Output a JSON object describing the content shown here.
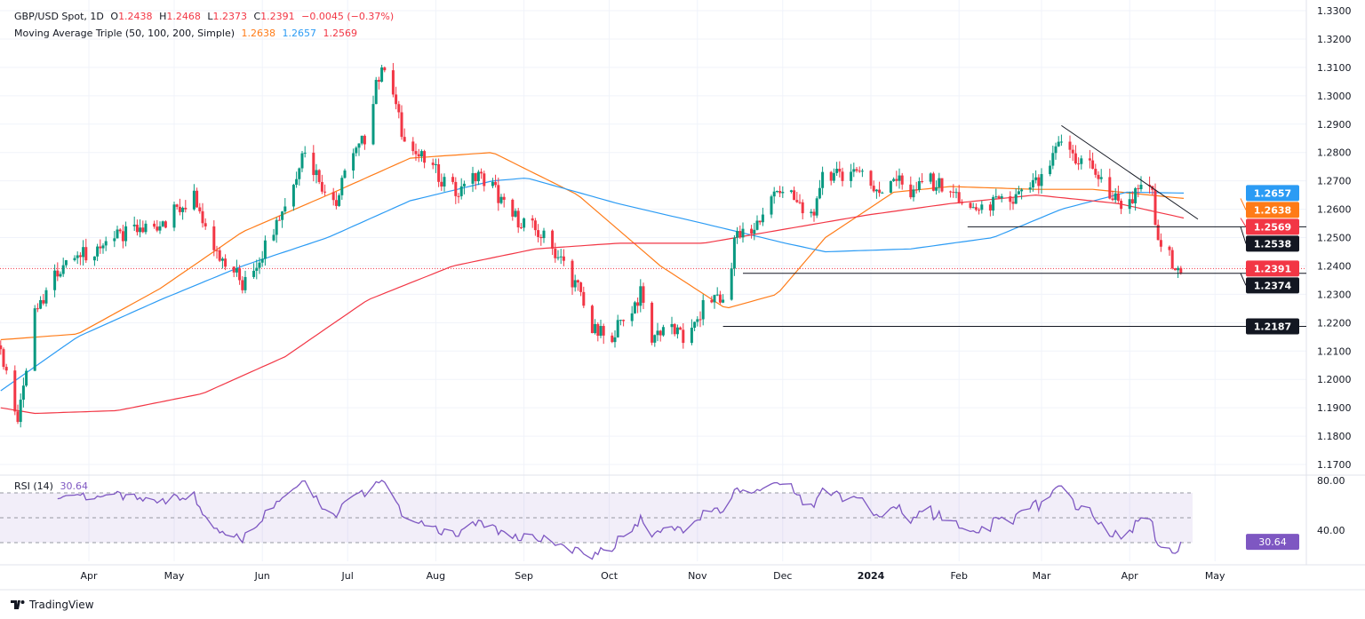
{
  "header": {
    "symbol": "GBP/USD Spot, 1D",
    "o_label": "O",
    "o": "1.2438",
    "h_label": "H",
    "h": "1.2468",
    "l_label": "L",
    "l": "1.2373",
    "c_label": "C",
    "c": "1.2391",
    "change": "−0.0045 (−0.37%)",
    "ma_title": "Moving Average Triple (50, 100, 200, Simple)",
    "ma50": "1.2638",
    "ma100": "1.2657",
    "ma200": "1.2569",
    "rsi_title": "RSI (14)",
    "rsi_value": "30.64"
  },
  "colors": {
    "up": "#089981",
    "down": "#f23645",
    "ma50": "#ff7b17",
    "ma100": "#2b9bf4",
    "ma200": "#f23645",
    "rsi": "#7e57c2",
    "level": "#131722"
  },
  "footer": {
    "brand": "TradingView"
  },
  "chart_data": {
    "type": "candlestick",
    "title": "GBP/USD Spot, 1D",
    "x_unit": "days from 2023-04-01",
    "ylim": [
      1.17,
      1.33
    ],
    "y_ticks": [
      "1.1700",
      "1.1800",
      "1.1900",
      "1.2000",
      "1.2100",
      "1.2200",
      "1.2300",
      "1.2400",
      "1.2500",
      "1.2600",
      "1.2700",
      "1.2800",
      "1.2900",
      "1.3000",
      "1.3100",
      "1.3200",
      "1.3300"
    ],
    "x_ticks": [
      {
        "label": "Apr",
        "day": 0
      },
      {
        "label": "May",
        "day": 30
      },
      {
        "label": "Jun",
        "day": 61
      },
      {
        "label": "Jul",
        "day": 91
      },
      {
        "label": "Aug",
        "day": 122
      },
      {
        "label": "Sep",
        "day": 153
      },
      {
        "label": "Oct",
        "day": 183
      },
      {
        "label": "Nov",
        "day": 214
      },
      {
        "label": "Dec",
        "day": 244
      },
      {
        "label": "2024",
        "day": 275
      },
      {
        "label": "Feb",
        "day": 306
      },
      {
        "label": "Mar",
        "day": 335
      },
      {
        "label": "Apr",
        "day": 366
      },
      {
        "label": "May",
        "day": 396
      }
    ],
    "close_keypoints": [
      [
        -31,
        1.212
      ],
      [
        -25,
        1.184
      ],
      [
        -19,
        1.224
      ],
      [
        -10,
        1.24
      ],
      [
        0,
        1.245
      ],
      [
        10,
        1.25
      ],
      [
        25,
        1.255
      ],
      [
        37,
        1.264
      ],
      [
        43,
        1.245
      ],
      [
        51,
        1.24
      ],
      [
        54,
        1.232
      ],
      [
        61,
        1.245
      ],
      [
        69,
        1.262
      ],
      [
        76,
        1.282
      ],
      [
        81,
        1.27
      ],
      [
        87,
        1.262
      ],
      [
        91,
        1.275
      ],
      [
        97,
        1.285
      ],
      [
        103,
        1.312
      ],
      [
        107,
        1.3
      ],
      [
        111,
        1.283
      ],
      [
        117,
        1.278
      ],
      [
        123,
        1.272
      ],
      [
        130,
        1.265
      ],
      [
        136,
        1.272
      ],
      [
        142,
        1.268
      ],
      [
        148,
        1.258
      ],
      [
        154,
        1.255
      ],
      [
        160,
        1.25
      ],
      [
        166,
        1.242
      ],
      [
        172,
        1.232
      ],
      [
        177,
        1.217
      ],
      [
        183,
        1.215
      ],
      [
        189,
        1.222
      ],
      [
        194,
        1.23
      ],
      [
        198,
        1.215
      ],
      [
        204,
        1.22
      ],
      [
        210,
        1.212
      ],
      [
        216,
        1.225
      ],
      [
        221,
        1.23
      ],
      [
        224,
        1.225
      ],
      [
        227,
        1.25
      ],
      [
        233,
        1.252
      ],
      [
        239,
        1.262
      ],
      [
        243,
        1.268
      ],
      [
        249,
        1.262
      ],
      [
        255,
        1.255
      ],
      [
        258,
        1.275
      ],
      [
        265,
        1.27
      ],
      [
        271,
        1.275
      ],
      [
        277,
        1.265
      ],
      [
        283,
        1.272
      ],
      [
        289,
        1.265
      ],
      [
        295,
        1.27
      ],
      [
        301,
        1.268
      ],
      [
        306,
        1.264
      ],
      [
        311,
        1.26
      ],
      [
        318,
        1.262
      ],
      [
        324,
        1.262
      ],
      [
        330,
        1.268
      ],
      [
        336,
        1.27
      ],
      [
        342,
        1.285
      ],
      [
        347,
        1.278
      ],
      [
        353,
        1.275
      ],
      [
        358,
        1.265
      ],
      [
        364,
        1.262
      ],
      [
        368,
        1.265
      ],
      [
        374,
        1.268
      ],
      [
        375,
        1.252
      ],
      [
        378,
        1.245
      ],
      [
        381,
        1.242
      ],
      [
        385,
        1.2391
      ]
    ],
    "series": [
      {
        "name": "MA 50",
        "value_label": "1.2638",
        "points": [
          [
            -31,
            1.214
          ],
          [
            -4,
            1.216
          ],
          [
            25,
            1.232
          ],
          [
            54,
            1.252
          ],
          [
            84,
            1.265
          ],
          [
            113,
            1.278
          ],
          [
            142,
            1.28
          ],
          [
            172,
            1.265
          ],
          [
            201,
            1.24
          ],
          [
            224,
            1.225
          ],
          [
            242,
            1.23
          ],
          [
            259,
            1.25
          ],
          [
            283,
            1.266
          ],
          [
            303,
            1.268
          ],
          [
            333,
            1.267
          ],
          [
            353,
            1.267
          ],
          [
            385,
            1.2638
          ]
        ]
      },
      {
        "name": "MA 100",
        "value_label": "1.2657",
        "points": [
          [
            -31,
            1.196
          ],
          [
            -4,
            1.215
          ],
          [
            25,
            1.228
          ],
          [
            54,
            1.24
          ],
          [
            84,
            1.25
          ],
          [
            113,
            1.263
          ],
          [
            142,
            1.27
          ],
          [
            154,
            1.271
          ],
          [
            186,
            1.262
          ],
          [
            216,
            1.255
          ],
          [
            245,
            1.248
          ],
          [
            259,
            1.245
          ],
          [
            289,
            1.246
          ],
          [
            318,
            1.25
          ],
          [
            342,
            1.26
          ],
          [
            365,
            1.266
          ],
          [
            385,
            1.2657
          ]
        ]
      },
      {
        "name": "MA 200",
        "value_label": "1.2569",
        "points": [
          [
            -31,
            1.19
          ],
          [
            -19,
            1.188
          ],
          [
            10,
            1.189
          ],
          [
            40,
            1.195
          ],
          [
            69,
            1.208
          ],
          [
            98,
            1.228
          ],
          [
            128,
            1.24
          ],
          [
            157,
            1.246
          ],
          [
            186,
            1.248
          ],
          [
            216,
            1.248
          ],
          [
            245,
            1.253
          ],
          [
            274,
            1.258
          ],
          [
            303,
            1.262
          ],
          [
            333,
            1.265
          ],
          [
            362,
            1.262
          ],
          [
            385,
            1.2569
          ]
        ]
      }
    ],
    "levels": [
      {
        "label": "1.2538",
        "value": 1.2538,
        "from_day": 309
      },
      {
        "label": "1.2374",
        "value": 1.2374,
        "from_day": 230
      },
      {
        "label": "1.2187",
        "value": 1.2187,
        "from_day": 223
      }
    ],
    "last_price": {
      "label": "1.2391",
      "value": 1.2391
    },
    "trendline": [
      [
        342,
        1.2895
      ],
      [
        390,
        1.2565
      ]
    ],
    "rsi": {
      "ylim": [
        20,
        85
      ],
      "ticks": [
        "80.00",
        "40.00"
      ],
      "bands": [
        70,
        50,
        30
      ],
      "last": 30.64
    }
  }
}
